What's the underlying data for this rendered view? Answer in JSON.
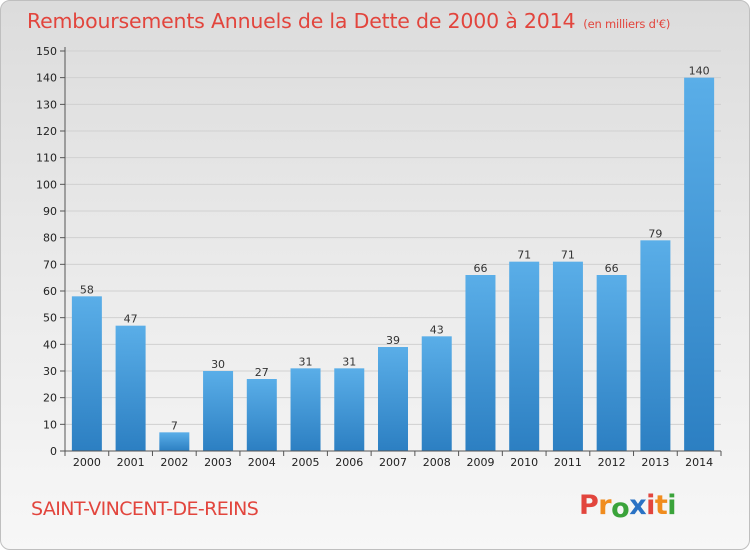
{
  "header": {
    "title": "Remboursements Annuels de la Dette de 2000 à 2014",
    "unit": "(en milliers d'€)"
  },
  "footer": {
    "commune": "SAINT-VINCENT-DE-REINS",
    "brand": [
      "P",
      "r",
      "o",
      "x",
      "i",
      "t",
      "i"
    ],
    "brand_colors": [
      "#e2453d",
      "#f08c1e",
      "#3aa33a",
      "#2a72c4",
      "#e2453d",
      "#f08c1e",
      "#3aa33a"
    ]
  },
  "chart_data": {
    "type": "bar",
    "title": "Remboursements Annuels de la Dette de 2000 à 2014",
    "xlabel": "",
    "ylabel": "",
    "categories": [
      "2000",
      "2001",
      "2002",
      "2003",
      "2004",
      "2005",
      "2006",
      "2007",
      "2008",
      "2009",
      "2010",
      "2011",
      "2012",
      "2013",
      "2014"
    ],
    "values": [
      58,
      47,
      7,
      30,
      27,
      31,
      31,
      39,
      43,
      66,
      71,
      71,
      66,
      79,
      140
    ],
    "ylim": [
      0,
      150
    ],
    "yticks": [
      0,
      10,
      20,
      30,
      40,
      50,
      60,
      70,
      80,
      90,
      100,
      110,
      120,
      130,
      140,
      150
    ],
    "grid": true,
    "bar_color_top": "#5aaee8",
    "bar_color_bottom": "#2c7fc2"
  }
}
